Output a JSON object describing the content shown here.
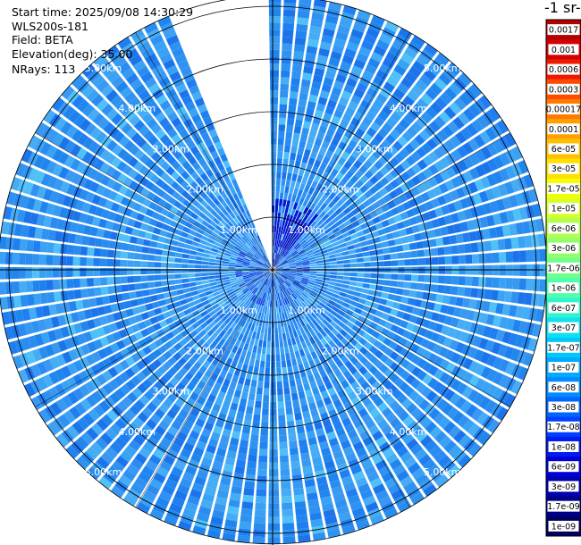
{
  "header": {
    "start_time": "Start time: 2025/09/08 14:30:29",
    "instrument": "WLS200s-181",
    "field": "Field: BETA",
    "elevation": "Elevation(deg): 35.00",
    "nrays": "NRays: 113"
  },
  "chart_data": {
    "type": "heatmap",
    "projection": "polar-ppi",
    "colorbar_title": "-1 sr-",
    "colorbar_labels": [
      "0.0017",
      "0.001",
      "0.0006",
      "0.0003",
      "0.00017",
      "0.0001",
      "6e-05",
      "3e-05",
      "1.7e-05",
      "1e-05",
      "6e-06",
      "3e-06",
      "1.7e-06",
      "1e-06",
      "6e-07",
      "3e-07",
      "1.7e-07",
      "1e-07",
      "6e-08",
      "3e-08",
      "1.7e-08",
      "1e-08",
      "6e-09",
      "3e-09",
      "1.7e-09",
      "1e-09"
    ],
    "colorbar_colors": [
      "#b30000",
      "#d40000",
      "#ee1a00",
      "#ff4a00",
      "#ff7a00",
      "#ff9f00",
      "#ffc000",
      "#ffe000",
      "#f2ff00",
      "#d6ff2e",
      "#b0ff4f",
      "#90ff6a",
      "#70ff8a",
      "#4fffab",
      "#30f5cc",
      "#10e0ec",
      "#00c8ff",
      "#00aaff",
      "#008cff",
      "#0066ff",
      "#0040ff",
      "#001cf0",
      "#0000d8",
      "#0000b0",
      "#000088",
      "#000060"
    ],
    "range_rings_km": [
      1,
      2,
      3,
      4,
      5
    ],
    "range_ring_labels": [
      "1.00km",
      "2.00km",
      "3.00km",
      "4.00km",
      "5.00km"
    ],
    "max_range_km": 5.2,
    "gap_azimuth_deg": [
      -22,
      0
    ],
    "dominant_color": "#2a8cf0",
    "near_field_color": "#0018d0"
  }
}
